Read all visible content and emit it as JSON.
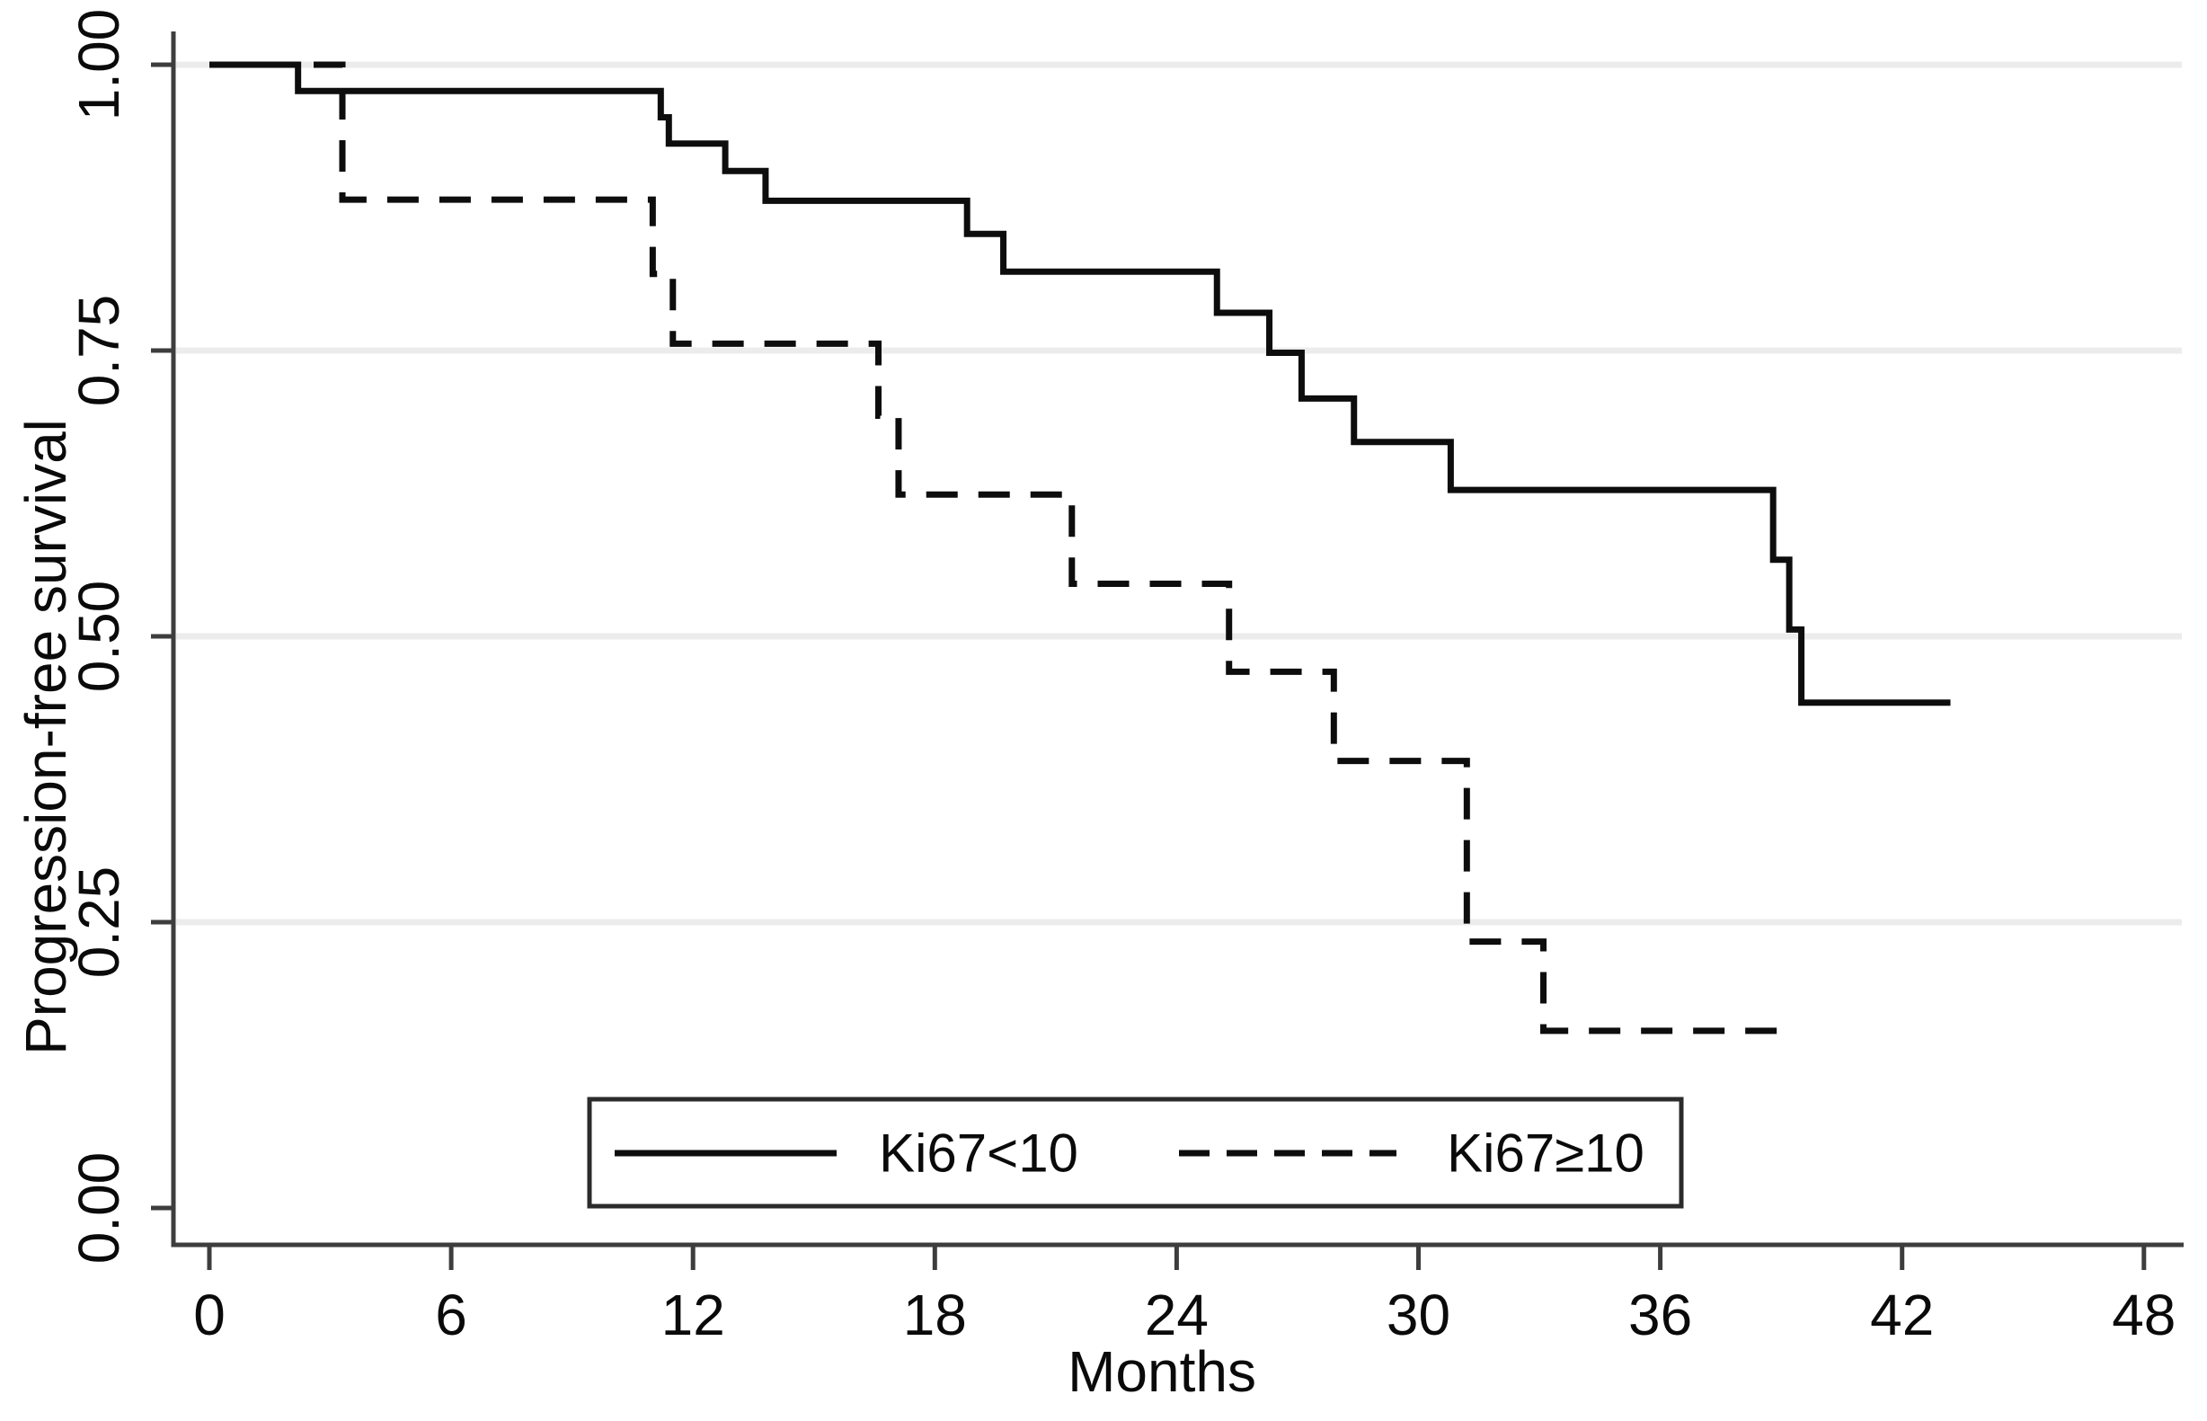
{
  "chart_data": {
    "type": "line",
    "subtype": "kaplan-meier-step",
    "title": "",
    "xlabel": "Months",
    "ylabel": "Progression-free survival",
    "xlim": [
      0,
      48
    ],
    "ylim": [
      0.0,
      1.0
    ],
    "x_ticks": [
      {
        "v": 0,
        "label": "0"
      },
      {
        "v": 6,
        "label": "6"
      },
      {
        "v": 12,
        "label": "12"
      },
      {
        "v": 18,
        "label": "18"
      },
      {
        "v": 24,
        "label": "24"
      },
      {
        "v": 30,
        "label": "30"
      },
      {
        "v": 36,
        "label": "36"
      },
      {
        "v": 42,
        "label": "42"
      },
      {
        "v": 48,
        "label": "48"
      }
    ],
    "y_ticks": [
      {
        "v": 0.0,
        "label": "0.00"
      },
      {
        "v": 0.25,
        "label": "0.25"
      },
      {
        "v": 0.5,
        "label": "0.50"
      },
      {
        "v": 0.75,
        "label": "0.75"
      },
      {
        "v": 1.0,
        "label": "1.00"
      }
    ],
    "grid": {
      "y_values": [
        0.25,
        0.5,
        0.75,
        1.0
      ],
      "x_values": []
    },
    "legend": {
      "position": "bottom-center",
      "items": [
        {
          "label": "Ki67<10",
          "line_style": "solid"
        },
        {
          "label": "Ki67≥10",
          "line_style": "dashed"
        }
      ]
    },
    "series": [
      {
        "name": "Ki67<10",
        "line_style": "solid",
        "end_month": 43.2,
        "steps": [
          [
            0.0,
            1.0
          ],
          [
            2.2,
            0.977
          ],
          [
            11.2,
            0.954
          ],
          [
            11.4,
            0.931
          ],
          [
            12.8,
            0.907
          ],
          [
            13.8,
            0.881
          ],
          [
            18.8,
            0.852
          ],
          [
            19.7,
            0.819
          ],
          [
            25.0,
            0.783
          ],
          [
            26.3,
            0.748
          ],
          [
            27.1,
            0.708
          ],
          [
            28.4,
            0.67
          ],
          [
            30.8,
            0.628
          ],
          [
            38.8,
            0.567
          ],
          [
            39.2,
            0.506
          ],
          [
            39.5,
            0.442
          ]
        ]
      },
      {
        "name": "Ki67≥10",
        "line_style": "dashed",
        "end_month": 39.0,
        "steps": [
          [
            0.0,
            1.0
          ],
          [
            3.3,
            0.882
          ],
          [
            11.0,
            0.817
          ],
          [
            11.5,
            0.756
          ],
          [
            16.6,
            0.693
          ],
          [
            17.1,
            0.624
          ],
          [
            21.4,
            0.546
          ],
          [
            25.3,
            0.469
          ],
          [
            27.9,
            0.391
          ],
          [
            31.2,
            0.233
          ],
          [
            33.1,
            0.155
          ]
        ]
      }
    ]
  },
  "colors": {
    "curve": "#0d0d0d",
    "grid": "#ececec",
    "axis": "#3d3d3d",
    "text": "#0a0a0a",
    "legend_border": "#2b2b2b",
    "background": "#ffffff"
  }
}
